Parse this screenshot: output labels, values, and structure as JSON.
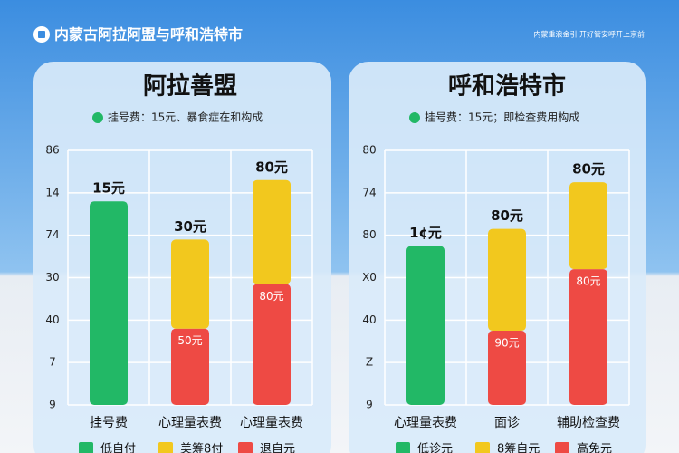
{
  "header": {
    "title": "内蒙古阿拉阿盟与呼和浩特市",
    "note": "内蒙重浪金引  开好管安呼开上京前"
  },
  "chart_data": [
    {
      "type": "bar",
      "title": "阿拉善盟",
      "subtitle": "挂号费：15元、暴食症在和构成",
      "categories": [
        "挂号费",
        "心理量表费",
        "心理量表费"
      ],
      "series": [
        {
          "name": "低自付",
          "color": "#22b866",
          "values": [
            4.8,
            null,
            null
          ],
          "labels": [
            "15元",
            null,
            null
          ]
        },
        {
          "name": "美筹8付",
          "color": "#f2c81e",
          "values": [
            null,
            2.1,
            2.45
          ],
          "labels": [
            null,
            "30元",
            "80元"
          ]
        },
        {
          "name": "退自元",
          "color": "#ee4a44",
          "values": [
            null,
            1.8,
            2.85
          ],
          "labels": [
            null,
            "50元",
            "80元"
          ]
        }
      ],
      "ylim": [
        0,
        6
      ],
      "yticks": [
        {
          "value": 0,
          "label": "9"
        },
        {
          "value": 1,
          "label": "7"
        },
        {
          "value": 2,
          "label": "40"
        },
        {
          "value": 3,
          "label": "30"
        },
        {
          "value": 4,
          "label": "74"
        },
        {
          "value": 5,
          "label": "14"
        },
        {
          "value": 6,
          "label": "86"
        }
      ],
      "grid": true
    },
    {
      "type": "bar",
      "title": "呼和浩特市",
      "subtitle": "挂号费：15元；即检查费用构成",
      "categories": [
        "心理量表费",
        "面诊",
        "辅助检查费"
      ],
      "series": [
        {
          "name": "低诊元",
          "color": "#22b866",
          "values": [
            3.75,
            null,
            null
          ],
          "labels": [
            "1¢元",
            null,
            null
          ]
        },
        {
          "name": "8筹自元",
          "color": "#f2c81e",
          "values": [
            null,
            2.4,
            2.05
          ],
          "labels": [
            null,
            "80元",
            "80元"
          ]
        },
        {
          "name": "高免元",
          "color": "#ee4a44",
          "values": [
            null,
            1.75,
            3.2
          ],
          "labels": [
            null,
            "90元",
            "80元"
          ]
        }
      ],
      "ylim": [
        0,
        6
      ],
      "yticks": [
        {
          "value": 0,
          "label": "9"
        },
        {
          "value": 1,
          "label": "Z"
        },
        {
          "value": 2,
          "label": "40"
        },
        {
          "value": 3,
          "label": "X0"
        },
        {
          "value": 4,
          "label": "80"
        },
        {
          "value": 5,
          "label": "74"
        },
        {
          "value": 6,
          "label": "80"
        }
      ],
      "grid": true
    }
  ]
}
